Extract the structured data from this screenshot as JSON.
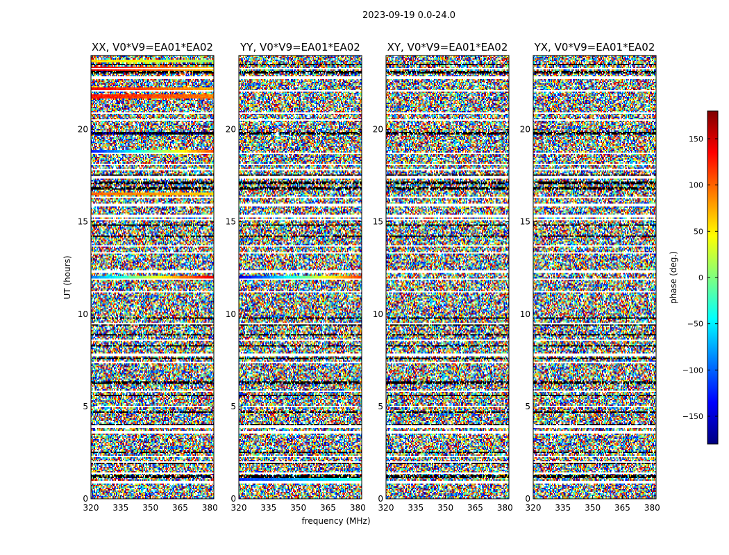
{
  "figure_title": "2023-09-19 0.0-24.0",
  "chart_data": {
    "type": "heatmap",
    "suptitle": "2023-09-19 0.0-24.0",
    "xlabel": "frequency (MHz)",
    "ylabel": "UT (hours)",
    "xlim": [
      320,
      382
    ],
    "ylim": [
      0,
      24
    ],
    "x_ticks": [
      320,
      335,
      350,
      365,
      380
    ],
    "y_ticks": [
      0,
      5,
      10,
      15,
      20
    ],
    "panels": [
      {
        "title": "XX, V0*V9=EA01*EA02",
        "polarization": "XX",
        "coherent_bands": [
          {
            "ut": 23.7,
            "phase_start": 60,
            "phase_end": 10
          },
          {
            "ut": 23.3,
            "phase_start": 150,
            "phase_end": 60
          },
          {
            "ut": 22.2,
            "phase_start": 140,
            "phase_end": 70
          },
          {
            "ut": 21.8,
            "phase_start": 130,
            "phase_end": 90
          },
          {
            "ut": 19.8,
            "phase_start": -150,
            "phase_end": -170
          },
          {
            "ut": 18.8,
            "phase_start": -130,
            "phase_end": 110
          },
          {
            "ut": 16.5,
            "phase_start": 100,
            "phase_end": 60
          },
          {
            "ut": 12.0,
            "phase_start": -90,
            "phase_end": 150
          },
          {
            "ut": 0.9,
            "phase_start": -60,
            "phase_end": -40
          }
        ]
      },
      {
        "title": "YY, V0*V9=EA01*EA02",
        "polarization": "YY",
        "coherent_bands": [
          {
            "ut": 12.0,
            "phase_start": -150,
            "phase_end": 120
          },
          {
            "ut": 1.0,
            "phase_start": -120,
            "phase_end": -30
          }
        ]
      },
      {
        "title": "XY, V0*V9=EA01*EA02",
        "polarization": "XY",
        "coherent_bands": []
      },
      {
        "title": "YX, V0*V9=EA01*EA02",
        "polarization": "YX",
        "coherent_bands": []
      }
    ],
    "flagged_rows_ut": [
      0.9,
      1.4,
      2.0,
      2.3,
      3.6,
      3.9,
      5.0,
      5.8,
      7.4,
      7.8,
      8.6,
      9.5,
      11.2,
      11.9,
      12.3,
      13.3,
      13.7,
      15.1,
      15.3,
      15.9,
      16.3,
      17.4,
      17.8,
      18.1,
      18.7,
      20.5,
      20.9,
      22.1,
      22.8,
      23.3
    ],
    "dark_rows_ut": [
      1.2,
      1.9,
      2.5,
      4.0,
      4.7,
      5.6,
      6.3,
      7.6,
      8.3,
      8.9,
      9.4,
      9.8,
      14.2,
      14.8,
      16.8,
      17.1,
      17.5,
      19.8,
      23.1,
      23.5
    ],
    "colorbar": {
      "label": "phase (deg.)",
      "range": [
        -180,
        180
      ],
      "ticks": [
        150,
        100,
        50,
        0,
        -50,
        -100,
        -150
      ],
      "tick_labels": [
        "150",
        "100",
        "50",
        "0",
        "−50",
        "−100",
        "−150"
      ],
      "colormap": [
        "#00007f",
        "#0000ff",
        "#007fff",
        "#00ffff",
        "#7fff7f",
        "#ffff00",
        "#ff7f00",
        "#ff0000",
        "#7f0000"
      ]
    }
  }
}
